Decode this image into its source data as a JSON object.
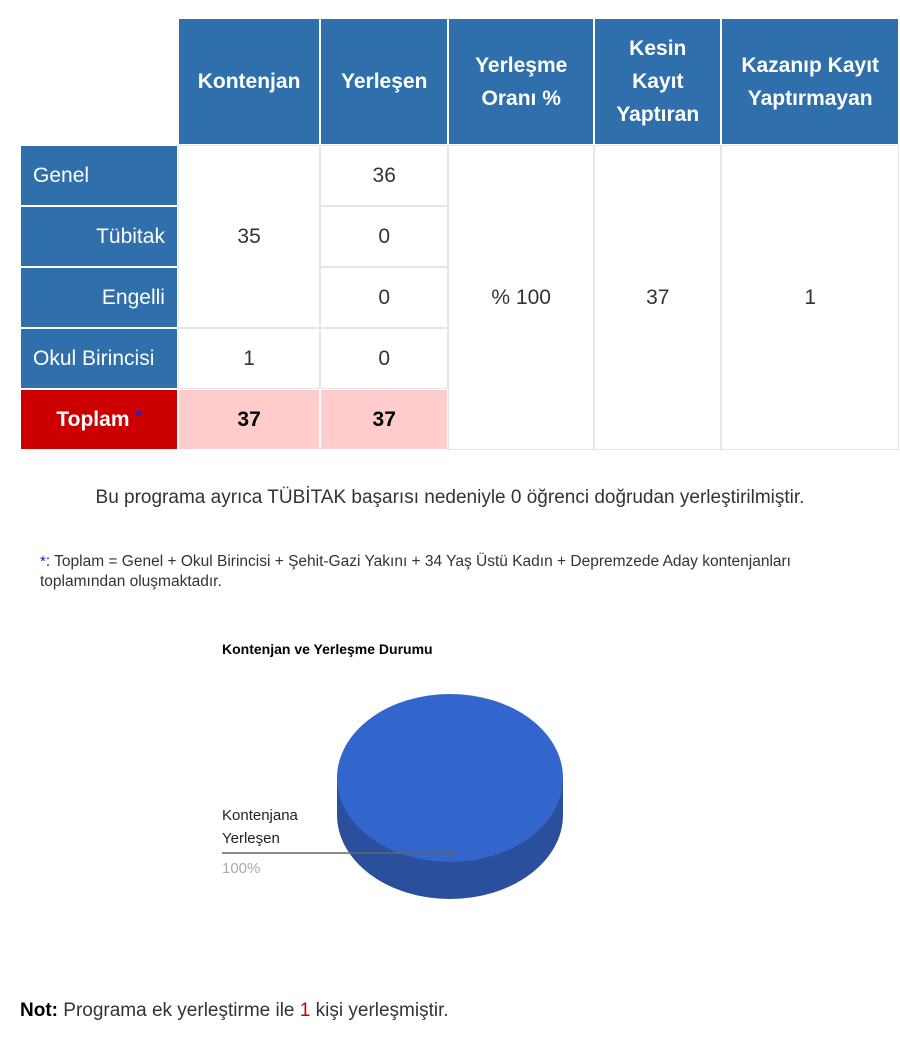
{
  "table": {
    "headers": [
      "Kontenjan",
      "Yerleşen",
      "Yerleşme Oranı %",
      "Kesin Kayıt Yaptıran",
      "Kazanıp Kayıt Yaptırmayan"
    ],
    "rows": {
      "genel": {
        "label": "Genel",
        "yerlesen": "36"
      },
      "tubitak": {
        "label": "Tübitak",
        "yerlesen": "0"
      },
      "engelli": {
        "label": "Engelli",
        "yerlesen": "0"
      },
      "okul": {
        "label": "Okul Birincisi",
        "kontenjan": "1",
        "yerlesen": "0"
      },
      "toplam": {
        "label": "Toplam",
        "star": "*",
        "kontenjan": "37",
        "yerlesen": "37"
      }
    },
    "merged_kontenjan": "35",
    "oran": "% 100",
    "kesin_kayit": "37",
    "kayit_yaptirmayan": "1"
  },
  "info_text": "Bu programa ayrıca TÜBİTAK başarısı nedeniyle 0 öğrenci doğrudan yerleştirilmiştir.",
  "footnote": {
    "star": "*",
    "text": ": Toplam = Genel + Okul Birincisi + Şehit-Gazi Yakını + 34 Yaş Üstü Kadın + Depremzede Aday kontenjanları toplamından oluşmaktadır."
  },
  "chart_data": {
    "type": "pie",
    "title": "Kontenjan ve Yerleşme Durumu",
    "slices": [
      {
        "label": "Kontenjana Yerleşen",
        "value": 100,
        "value_label": "100%",
        "color": "#3366cc"
      }
    ],
    "style": "3d"
  },
  "note": {
    "label": "Not:",
    "text_before": "Programa ek yerleştirme ile",
    "count": "1",
    "text_after": "kişi yerleşmiştir."
  }
}
